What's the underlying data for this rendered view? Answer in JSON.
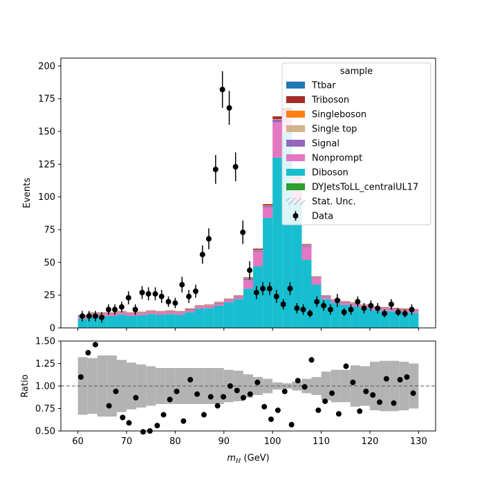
{
  "chart_data": {
    "type": "bar",
    "binning": {
      "low": 60,
      "high": 130,
      "width": 2
    },
    "main": {
      "ylabel": "Events",
      "ylim": [
        0,
        206
      ],
      "yticks": [
        0,
        25,
        50,
        75,
        100,
        125,
        150,
        175,
        200
      ],
      "xlim": [
        56.5,
        133.5
      ],
      "xticks": [
        60,
        70,
        80,
        90,
        100,
        110,
        120,
        130
      ],
      "stack": [
        {
          "name": "DYJetsToLL_centralUL17",
          "color": "#2ca02c",
          "values": [
            0,
            0,
            0,
            0,
            0,
            0,
            0,
            0,
            0,
            0,
            0,
            0,
            0,
            0,
            0,
            0,
            0,
            0,
            0,
            0,
            0,
            0,
            0,
            0,
            0,
            0,
            0,
            0,
            0,
            0,
            0,
            0,
            0,
            0,
            0
          ]
        },
        {
          "name": "Diboson",
          "color": "#17becf",
          "values": [
            7.0,
            9.0,
            9.0,
            9.0,
            10.0,
            9.0,
            9.5,
            10.5,
            10.0,
            10.5,
            10.0,
            12.0,
            14.5,
            15.0,
            17.0,
            19.5,
            22.0,
            30.0,
            47.0,
            84.0,
            130.0,
            149.0,
            96.0,
            52.0,
            33.0,
            22.0,
            19.0,
            17.5,
            16.5,
            15.0,
            13.5,
            13.0,
            12.5,
            12.0,
            11.5
          ]
        },
        {
          "name": "Nonprompt",
          "color": "#e377c2",
          "values": [
            1.5,
            1.5,
            1.5,
            1.5,
            1.5,
            1.5,
            1.5,
            1.5,
            1.5,
            1.5,
            1.5,
            1.5,
            1.5,
            1.5,
            1.5,
            1.5,
            1.5,
            6.5,
            11.0,
            8.0,
            27.0,
            13.0,
            17.5,
            10.0,
            5.0,
            1.5,
            1.5,
            1.5,
            1.5,
            1.5,
            1.5,
            1.5,
            1.5,
            1.5,
            1.5
          ]
        },
        {
          "name": "Signal",
          "color": "#9467bd",
          "values": [
            0.5,
            0.5,
            0.5,
            0.5,
            0.5,
            0.5,
            0.5,
            0.5,
            0.5,
            0.5,
            0.5,
            0.5,
            0.5,
            0.5,
            0.5,
            0.5,
            0.5,
            1.0,
            1.0,
            1.0,
            2.0,
            3.0,
            2.0,
            1.0,
            0.5,
            0.5,
            0.5,
            0.5,
            0.5,
            0.5,
            0.5,
            0.5,
            0.5,
            0.5,
            0.5
          ]
        },
        {
          "name": "Single top",
          "color": "#d2b48c",
          "values": [
            0.3,
            0.3,
            0.3,
            0.3,
            0.3,
            0.3,
            0.3,
            0.3,
            0.3,
            0.3,
            0.3,
            0.3,
            0.3,
            0.3,
            0.3,
            0.3,
            0.3,
            0.3,
            0.3,
            0.3,
            0.3,
            0.3,
            0.3,
            0.3,
            0.3,
            0.3,
            0.3,
            0.3,
            0.3,
            0.3,
            0.3,
            0.3,
            0.3,
            0.3,
            0.3
          ]
        },
        {
          "name": "Singleboson",
          "color": "#ff7f0e",
          "values": [
            0.2,
            0.2,
            0.2,
            0.2,
            0.2,
            0.2,
            0.2,
            0.2,
            0.2,
            0.2,
            0.2,
            0.2,
            0.2,
            0.2,
            0.2,
            0.2,
            0.2,
            0.2,
            0.2,
            0.2,
            0.2,
            0.2,
            0.2,
            0.2,
            0.2,
            0.2,
            0.2,
            0.2,
            0.2,
            0.2,
            0.2,
            0.2,
            0.2,
            0.2,
            0.2
          ]
        },
        {
          "name": "Triboson",
          "color": "#a52a2a",
          "values": [
            0.3,
            0.3,
            0.3,
            0.3,
            0.3,
            0.3,
            0.3,
            0.3,
            0.3,
            0.3,
            0.3,
            0.3,
            0.3,
            0.3,
            0.3,
            0.3,
            0.3,
            0.5,
            1.0,
            1.0,
            2.0,
            2.5,
            1.5,
            0.5,
            0.3,
            0.3,
            0.3,
            0.3,
            0.3,
            0.3,
            0.3,
            0.3,
            0.3,
            0.3,
            0.3
          ]
        },
        {
          "name": "Ttbar",
          "color": "#1f77b4",
          "values": [
            0,
            0,
            0,
            0,
            0,
            0,
            0,
            0,
            0,
            0,
            0,
            0,
            0,
            0,
            0,
            0,
            0,
            0,
            0,
            0,
            0,
            0,
            0,
            0,
            0,
            0,
            0,
            0,
            0,
            0,
            0,
            0,
            0,
            0,
            0
          ]
        }
      ],
      "stat_unc_label": "Stat. Unc.",
      "stat_unc_rel": [
        0.32,
        0.31,
        0.34,
        0.34,
        0.29,
        0.26,
        0.24,
        0.22,
        0.2,
        0.2,
        0.2,
        0.2,
        0.2,
        0.2,
        0.2,
        0.18,
        0.17,
        0.13,
        0.1,
        0.08,
        0.04,
        0.03,
        0.05,
        0.08,
        0.1,
        0.16,
        0.18,
        0.18,
        0.23,
        0.22,
        0.27,
        0.28,
        0.28,
        0.27,
        0.25
      ],
      "data": {
        "name": "Data",
        "color": "#000000",
        "values": [
          9,
          9,
          9,
          8,
          14,
          14,
          16,
          23,
          14,
          27,
          26,
          26,
          24,
          20,
          19,
          33,
          24,
          28,
          56,
          68,
          121,
          182,
          168,
          123,
          73,
          44,
          27,
          30,
          30,
          24,
          18,
          30,
          15,
          14,
          11,
          20,
          17,
          14,
          21,
          12,
          14,
          20,
          15,
          17,
          15,
          11,
          18,
          12,
          11,
          14
        ],
        "x": [
          60.9,
          62.3,
          63.6,
          64.9,
          66.3,
          67.6,
          69.0,
          70.4,
          71.8,
          73.2,
          74.5,
          75.9,
          77.2,
          78.6,
          80.0,
          81.4,
          82.8,
          84.2,
          85.6,
          86.9,
          88.3,
          89.7,
          91.1,
          92.4,
          93.9,
          95.3,
          96.7,
          98.0,
          99.4,
          100.8,
          102.2,
          103.6,
          105.0,
          106.3,
          107.7,
          109.1,
          110.5,
          111.9,
          113.3,
          114.7,
          116.1,
          117.5,
          118.8,
          120.2,
          121.6,
          123.0,
          124.4,
          125.8,
          127.2,
          128.6
        ],
        "err": [
          4,
          4,
          4,
          4,
          4,
          4,
          4,
          5,
          4,
          5,
          5,
          5,
          5,
          4,
          4,
          6,
          5,
          5,
          7,
          8,
          11,
          14,
          13,
          11,
          9,
          7,
          5,
          5,
          5,
          5,
          4,
          5,
          4,
          4,
          3,
          4,
          4,
          4,
          5,
          3,
          4,
          4,
          4,
          4,
          4,
          3,
          4,
          3,
          3,
          4
        ]
      },
      "legend": {
        "title": "sample",
        "placement": "upper right",
        "entries": [
          "Ttbar",
          "Triboson",
          "Singleboson",
          "Single top",
          "Signal",
          "Nonprompt",
          "Diboson",
          "DYJetsToLL_centralUL17",
          "Stat. Unc.",
          "Data"
        ]
      }
    },
    "ratio": {
      "ylabel": "Ratio",
      "ylim": [
        0.5,
        1.5
      ],
      "yticks": [
        "0.50",
        "0.75",
        "1.00",
        "1.25",
        "1.50"
      ],
      "reference_line": 1.0,
      "xlabel_main": "m",
      "xlabel_sub": "ℓℓ",
      "xlabel_unit": " (GeV)",
      "xtick_labels": [
        "60",
        "70",
        "80",
        "90",
        "100",
        "110",
        "120",
        "130"
      ],
      "points": [
        {
          "x": 60.6,
          "y": 1.1
        },
        {
          "x": 62.1,
          "y": 1.37
        },
        {
          "x": 63.6,
          "y": 1.46
        },
        {
          "x": 66.4,
          "y": 0.78
        },
        {
          "x": 67.8,
          "y": 0.94
        },
        {
          "x": 69.2,
          "y": 0.65
        },
        {
          "x": 70.5,
          "y": 0.59
        },
        {
          "x": 71.9,
          "y": 0.87
        },
        {
          "x": 73.4,
          "y": 0.49
        },
        {
          "x": 74.8,
          "y": 0.5
        },
        {
          "x": 76.3,
          "y": 0.56
        },
        {
          "x": 77.6,
          "y": 0.68
        },
        {
          "x": 78.9,
          "y": 0.85
        },
        {
          "x": 80.3,
          "y": 0.94
        },
        {
          "x": 81.7,
          "y": 0.61
        },
        {
          "x": 83.1,
          "y": 1.07
        },
        {
          "x": 84.5,
          "y": 0.91
        },
        {
          "x": 85.9,
          "y": 0.68
        },
        {
          "x": 87.3,
          "y": 0.88
        },
        {
          "x": 88.7,
          "y": 0.78
        },
        {
          "x": 89.9,
          "y": 0.88
        },
        {
          "x": 91.3,
          "y": 1.0
        },
        {
          "x": 92.7,
          "y": 0.95
        },
        {
          "x": 94.0,
          "y": 0.87
        },
        {
          "x": 95.4,
          "y": 0.91
        },
        {
          "x": 96.9,
          "y": 1.04
        },
        {
          "x": 98.3,
          "y": 0.77
        },
        {
          "x": 99.7,
          "y": 0.63
        },
        {
          "x": 101.1,
          "y": 0.73
        },
        {
          "x": 102.5,
          "y": 0.94
        },
        {
          "x": 103.9,
          "y": 0.57
        },
        {
          "x": 105.2,
          "y": 1.06
        },
        {
          "x": 106.6,
          "y": 0.99
        },
        {
          "x": 108.0,
          "y": 1.29
        },
        {
          "x": 109.4,
          "y": 0.73
        },
        {
          "x": 110.8,
          "y": 0.83
        },
        {
          "x": 112.2,
          "y": 0.92
        },
        {
          "x": 113.6,
          "y": 0.69
        },
        {
          "x": 115.1,
          "y": 1.22
        },
        {
          "x": 116.5,
          "y": 1.04
        },
        {
          "x": 117.9,
          "y": 0.72
        },
        {
          "x": 119.2,
          "y": 0.94
        },
        {
          "x": 120.6,
          "y": 0.9
        },
        {
          "x": 122.0,
          "y": 0.82
        },
        {
          "x": 123.4,
          "y": 1.08
        },
        {
          "x": 124.9,
          "y": 0.81
        },
        {
          "x": 126.2,
          "y": 1.07
        },
        {
          "x": 127.6,
          "y": 1.1
        },
        {
          "x": 128.9,
          "y": 0.92
        }
      ]
    }
  }
}
